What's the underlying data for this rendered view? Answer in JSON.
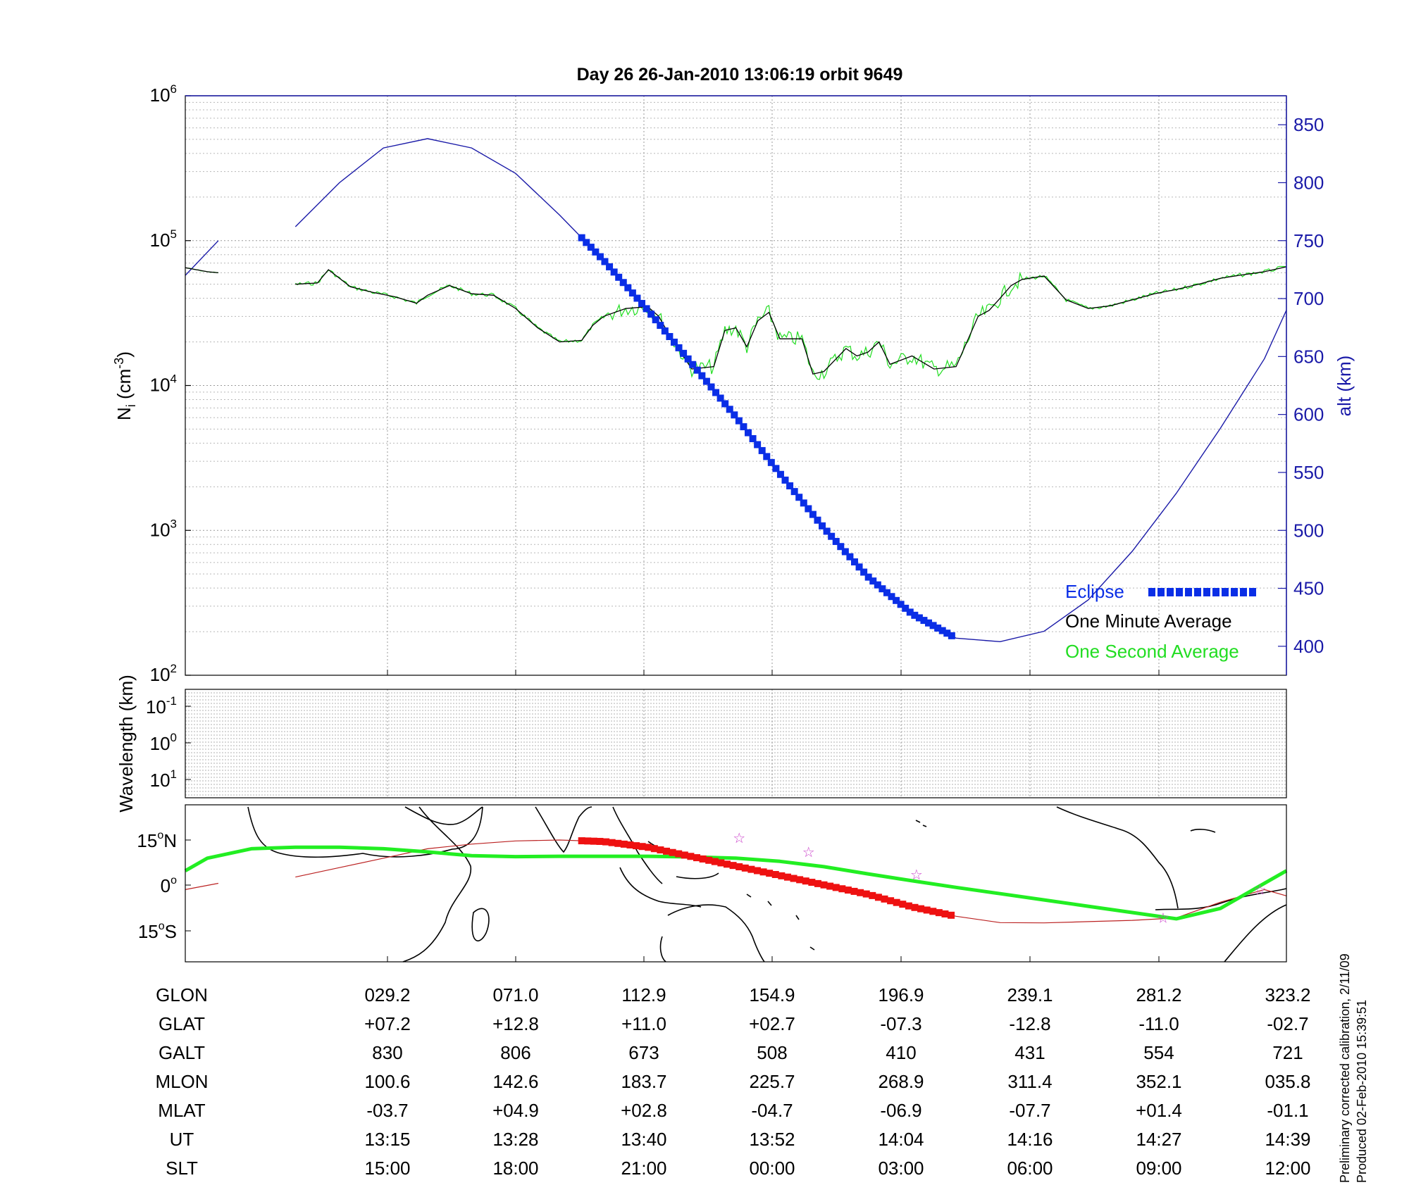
{
  "title": "Day 26  26-Jan-2010 13:06:19   orbit 9649",
  "colors": {
    "alt": "#1a1aa8",
    "eclipse": "#0a2ee6",
    "avg1min": "#000000",
    "avg1sec": "#22dd22",
    "track": "#22ee22",
    "track_eclipse": "#ee1111",
    "track_thin": "#bb2222",
    "stars": "#cc44cc"
  },
  "footer": {
    "line1": "Preliminary corrected calibration, 2/11/09",
    "line2": "Produced 02-Feb-2010 15:39:51"
  },
  "chart_data": [
    {
      "type": "line",
      "panel": "density",
      "ylabel": "N",
      "ylabel_sub": "i",
      "ylabel_unit": " (cm",
      "ylabel_exp": "-3",
      "ylabel_close": ")",
      "y_scale": "log",
      "ylim": [
        100,
        1000000
      ],
      "yticks": [
        {
          "base": "10",
          "exp": "2"
        },
        {
          "base": "10",
          "exp": "3"
        },
        {
          "base": "10",
          "exp": "4"
        },
        {
          "base": "10",
          "exp": "5"
        },
        {
          "base": "10",
          "exp": "6"
        }
      ],
      "y2label": "alt (km)",
      "y2lim": [
        375,
        875
      ],
      "y2ticks": [
        "400",
        "450",
        "500",
        "550",
        "600",
        "650",
        "700",
        "750",
        "800",
        "850"
      ],
      "grid": true,
      "legend_position": "lower-right",
      "legend": [
        {
          "label": "Eclipse",
          "color": "#0a2ee6"
        },
        {
          "label": "One Minute Average",
          "color": "#000000"
        },
        {
          "label": "One Second Average",
          "color": "#22dd22"
        }
      ],
      "series": [
        {
          "name": "One Minute Average",
          "x": [
            0.0,
            0.02,
            0.03,
            0.1,
            0.12,
            0.13,
            0.15,
            0.17,
            0.19,
            0.21,
            0.22,
            0.24,
            0.26,
            0.28,
            0.3,
            0.32,
            0.34,
            0.36,
            0.37,
            0.38,
            0.4,
            0.42,
            0.43,
            0.44,
            0.46,
            0.48,
            0.49,
            0.5,
            0.51,
            0.52,
            0.53,
            0.54,
            0.56,
            0.57,
            0.58,
            0.6,
            0.61,
            0.62,
            0.63,
            0.64,
            0.66,
            0.68,
            0.7,
            0.72,
            0.73,
            0.74,
            0.75,
            0.76,
            0.78,
            0.8,
            0.82,
            0.84,
            0.86,
            0.88,
            0.9,
            0.92,
            0.94,
            0.96,
            0.98,
            1.0
          ],
          "y": [
            65000,
            61000,
            60000,
            50000,
            51000,
            63000,
            48000,
            44000,
            41000,
            37000,
            42000,
            49000,
            43000,
            42000,
            34000,
            25000,
            20000,
            20500,
            26000,
            30000,
            34000,
            35000,
            30000,
            22000,
            13000,
            13500,
            24000,
            25000,
            18500,
            28000,
            32000,
            21000,
            21000,
            12000,
            12500,
            18000,
            16000,
            17000,
            20000,
            14000,
            16000,
            13000,
            13500,
            30000,
            33000,
            40000,
            49000,
            54000,
            57000,
            39000,
            34000,
            35500,
            39000,
            43000,
            46000,
            50000,
            55000,
            58000,
            61000,
            66000
          ]
        },
        {
          "name": "altitude",
          "x": [
            0.0,
            0.03,
            0.1,
            0.14,
            0.18,
            0.22,
            0.26,
            0.3,
            0.34,
            0.38,
            0.42,
            0.46,
            0.5,
            0.54,
            0.58,
            0.62,
            0.66,
            0.7,
            0.74,
            0.78,
            0.82,
            0.86,
            0.9,
            0.94,
            0.98,
            1.0
          ],
          "y": [
            720,
            750,
            762,
            800,
            830,
            838,
            830,
            808,
            772,
            733,
            690,
            644,
            598,
            549,
            502,
            460,
            428,
            407,
            404,
            413,
            440,
            482,
            532,
            588,
            648,
            690
          ]
        }
      ],
      "eclipse_x": [
        0.36,
        0.7
      ]
    },
    {
      "type": "heatmap",
      "panel": "wavelength",
      "ylabel": "Wavelength (km)",
      "yticks": [
        {
          "base": "10",
          "exp": "-1"
        },
        {
          "base": "10",
          "exp": "0"
        },
        {
          "base": "10",
          "exp": "1"
        }
      ]
    },
    {
      "type": "line",
      "panel": "track",
      "yticks": [
        {
          "deg": "15",
          "unit": "N"
        },
        {
          "deg": "0",
          "unit": ""
        },
        {
          "deg": "15",
          "unit": "S"
        }
      ],
      "ylim": [
        -25,
        25
      ],
      "series": [
        {
          "name": "magnetic",
          "x": [
            0.0,
            0.02,
            0.06,
            0.1,
            0.14,
            0.18,
            0.22,
            0.26,
            0.3,
            0.34,
            0.38,
            0.42,
            0.46,
            0.5,
            0.54,
            0.58,
            0.62,
            0.66,
            0.7,
            0.74,
            0.78,
            0.82,
            0.86,
            0.9,
            0.94,
            0.97,
            1.0
          ],
          "y": [
            4,
            8,
            11,
            11.5,
            11.5,
            11,
            10,
            8.8,
            8.5,
            8.6,
            8.6,
            8.6,
            8.4,
            8,
            7,
            5.3,
            3,
            0.8,
            -1.3,
            -3.3,
            -5.3,
            -7.3,
            -9.3,
            -11.3,
            -8,
            -2,
            4
          ]
        },
        {
          "name": "geographic",
          "x": [
            0.0,
            0.03,
            0.1,
            0.14,
            0.18,
            0.22,
            0.26,
            0.3,
            0.34,
            0.38,
            0.42,
            0.46,
            0.5,
            0.54,
            0.58,
            0.62,
            0.66,
            0.7,
            0.74,
            0.78,
            0.82,
            0.86,
            0.9,
            0.94,
            0.98,
            1.0
          ],
          "y": [
            -2,
            0,
            2,
            5,
            8,
            11,
            12.5,
            13.5,
            13.8,
            13.3,
            11.5,
            8.5,
            5.5,
            2.5,
            -0.5,
            -3.5,
            -7.5,
            -10.5,
            -12.5,
            -12.6,
            -12.2,
            -11.8,
            -11,
            -6,
            -2,
            -4
          ]
        }
      ],
      "stars": [
        {
          "x": 0.503,
          "y": 14.5
        },
        {
          "x": 0.566,
          "y": 10
        },
        {
          "x": 0.664,
          "y": 2.8
        },
        {
          "x": 0.888,
          "y": -11
        },
        {
          "x": 0.976,
          "y": -2
        }
      ]
    }
  ],
  "ephemeris": {
    "rows": [
      {
        "label": "GLON",
        "values": [
          "029.2",
          "071.0",
          "112.9",
          "154.9",
          "196.9",
          "239.1",
          "281.2",
          "323.2"
        ]
      },
      {
        "label": "GLAT",
        "values": [
          "+07.2",
          "+12.8",
          "+11.0",
          "+02.7",
          "-07.3",
          "-12.8",
          "-11.0",
          "-02.7"
        ]
      },
      {
        "label": "GALT",
        "values": [
          "830",
          "806",
          "673",
          "508",
          "410",
          "431",
          "554",
          "721"
        ]
      },
      {
        "label": "MLON",
        "values": [
          "100.6",
          "142.6",
          "183.7",
          "225.7",
          "268.9",
          "311.4",
          "352.1",
          "035.8"
        ]
      },
      {
        "label": "MLAT",
        "values": [
          "-03.7",
          "+04.9",
          "+02.8",
          "-04.7",
          "-06.9",
          "-07.7",
          "+01.4",
          "-01.1"
        ]
      },
      {
        "label": "UT",
        "values": [
          "13:15",
          "13:28",
          "13:40",
          "13:52",
          "14:04",
          "14:16",
          "14:27",
          "14:39"
        ]
      },
      {
        "label": "SLT",
        "values": [
          "15:00",
          "18:00",
          "21:00",
          "00:00",
          "03:00",
          "06:00",
          "09:00",
          "12:00"
        ]
      }
    ]
  }
}
